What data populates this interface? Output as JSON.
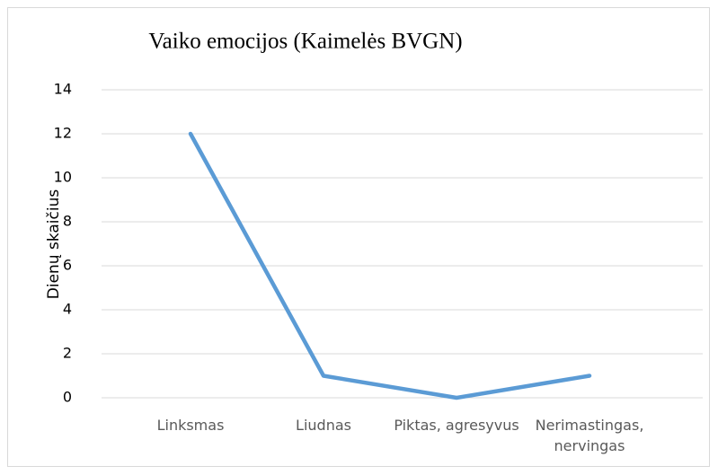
{
  "chart_data": {
    "type": "line",
    "title": "Vaiko emocijos (Kaimelės BVGN)",
    "ylabel": "Dienų skaičius",
    "categories": [
      "Linksmas",
      "Liudnas",
      "Piktas, agresyvus",
      "Nerimastingas, nervingas"
    ],
    "series": [
      {
        "name": "Vaiko emocijos",
        "color": "#5b9bd5",
        "values": [
          12,
          1,
          0,
          1
        ]
      }
    ],
    "ylim": [
      0,
      14
    ],
    "yticks": [
      0,
      2,
      4,
      6,
      8,
      10,
      12,
      14
    ],
    "grid": true
  }
}
